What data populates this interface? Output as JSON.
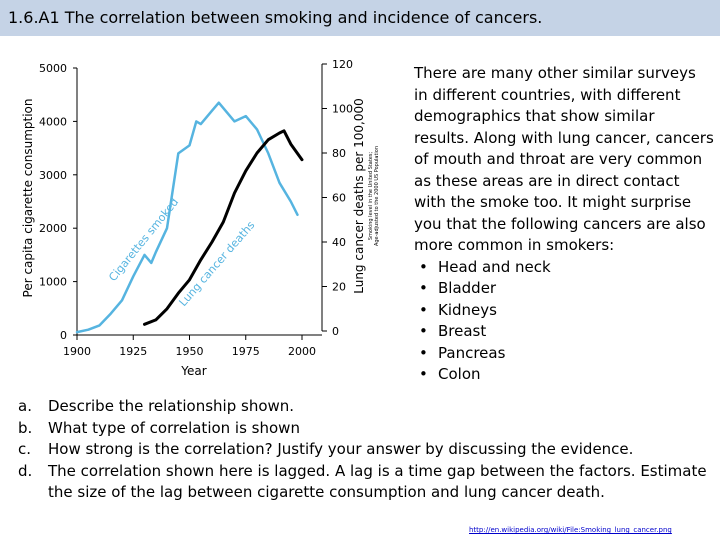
{
  "title": "1.6.A1 The correlation between smoking and incidence of cancers.",
  "chart_data": {
    "type": "line",
    "xlabel": "Year",
    "ylabel_left": "Per capita cigarette consumption",
    "ylabel_right": "Lung cancer deaths per 100,000",
    "right_axis_note": [
      "Smoking level in the United States;",
      "Age-adjusted to the 2000 US Population"
    ],
    "xlim": [
      1900,
      2000
    ],
    "ylim_left": [
      0,
      5000
    ],
    "ylim_right": [
      0,
      120
    ],
    "x_ticks": [
      "1900",
      "1925",
      "1950",
      "1975",
      "2000"
    ],
    "y_ticks_left": [
      "0",
      "1000",
      "2000",
      "3000",
      "4000",
      "5000"
    ],
    "y_ticks_right": [
      "0",
      "20",
      "40",
      "60",
      "80",
      "100",
      "120"
    ],
    "series": [
      {
        "name": "Cigarettes smoked",
        "axis": "left",
        "color": "#56b4e0",
        "points": [
          [
            1900,
            54
          ],
          [
            1905,
            100
          ],
          [
            1910,
            180
          ],
          [
            1915,
            400
          ],
          [
            1920,
            650
          ],
          [
            1925,
            1100
          ],
          [
            1930,
            1500
          ],
          [
            1933,
            1350
          ],
          [
            1935,
            1550
          ],
          [
            1940,
            2000
          ],
          [
            1945,
            3400
          ],
          [
            1950,
            3550
          ],
          [
            1953,
            4000
          ],
          [
            1955,
            3950
          ],
          [
            1960,
            4200
          ],
          [
            1963,
            4350
          ],
          [
            1965,
            4250
          ],
          [
            1970,
            4000
          ],
          [
            1975,
            4100
          ],
          [
            1980,
            3850
          ],
          [
            1985,
            3400
          ],
          [
            1990,
            2850
          ],
          [
            1995,
            2500
          ],
          [
            1998,
            2250
          ]
        ]
      },
      {
        "name": "Lung cancer deaths",
        "axis": "right",
        "color": "#000000",
        "points": [
          [
            1930,
            3
          ],
          [
            1935,
            5
          ],
          [
            1940,
            10
          ],
          [
            1945,
            17
          ],
          [
            1950,
            23
          ],
          [
            1955,
            32
          ],
          [
            1960,
            40
          ],
          [
            1965,
            49
          ],
          [
            1970,
            62
          ],
          [
            1975,
            72
          ],
          [
            1980,
            80
          ],
          [
            1985,
            86
          ],
          [
            1990,
            89
          ],
          [
            1992,
            90
          ],
          [
            1995,
            84
          ],
          [
            2000,
            77
          ]
        ]
      }
    ]
  },
  "intro_text": "There are many other similar surveys in different countries, with different demographics that show similar results. Along with lung cancer, cancers of mouth and throat are very common as these areas are in direct contact with the smoke too. It might surprise you that the following cancers are also more common in smokers:",
  "cancer_list": [
    "Head and neck",
    "Bladder",
    "Kidneys",
    "Breast",
    "Pancreas",
    "Colon"
  ],
  "questions": [
    {
      "letter": "a.",
      "text": "Describe the relationship shown."
    },
    {
      "letter": "b.",
      "text": "What type of correlation is shown"
    },
    {
      "letter": "c.",
      "text": "How strong is the correlation? Justify your answer by discussing the evidence."
    },
    {
      "letter": "d.",
      "text": "The correlation shown here is lagged. A lag is a time gap between the factors. Estimate the size of the lag between cigarette consumption and lung cancer death."
    }
  ],
  "source_link": "http://en.wikipedia.org/wiki/File:Smoking_lung_cancer.png"
}
